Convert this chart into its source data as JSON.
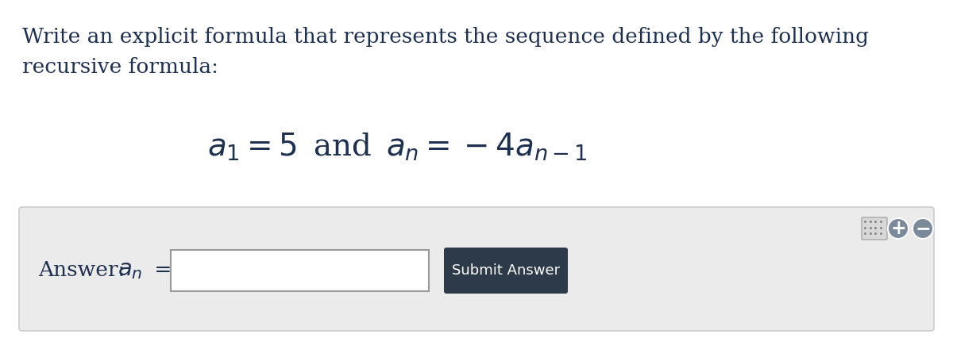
{
  "bg_color": "#ffffff",
  "question_text_line1": "Write an explicit formula that represents the sequence defined by the following",
  "question_text_line2": "recursive formula:",
  "formula": "$a_1 = 5\\,$ and $\\,a_n = -4a_{n-1}$",
  "answer_label_text": "Answer: ",
  "answer_label_math": "$a_n$",
  "answer_label_eq": " =",
  "submit_text": "Submit Answer",
  "submit_bg": "#2d3a4a",
  "submit_text_color": "#ffffff",
  "answer_box_bg": "#ffffff",
  "answer_box_border": "#999999",
  "answer_section_bg": "#ebebeb",
  "answer_section_border": "#cccccc",
  "text_color": "#1e3050",
  "question_fontsize": 19,
  "formula_fontsize": 28,
  "answer_fontsize": 19
}
